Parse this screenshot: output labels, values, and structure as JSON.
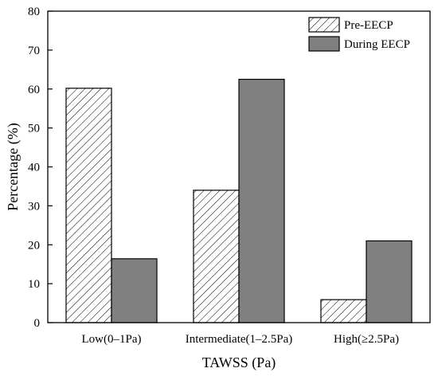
{
  "chart_data": {
    "type": "bar",
    "xlabel": "TAWSS (Pa)",
    "ylabel": "Percentage (%)",
    "categories": [
      "Low(0–1Pa)",
      "Intermediate(1–2.5Pa)",
      "High(≥2.5Pa)"
    ],
    "series": [
      {
        "name": "Pre-EECP",
        "values": [
          60.2,
          34.0,
          5.9
        ],
        "fill": "hatched",
        "color": "#000000"
      },
      {
        "name": "During EECP",
        "values": [
          16.4,
          62.5,
          21.0
        ],
        "fill": "solid",
        "color": "#808080"
      }
    ],
    "ylim": [
      0,
      80
    ],
    "yticks": [
      "0",
      "10",
      "20",
      "30",
      "40",
      "50",
      "60",
      "70",
      "80"
    ],
    "grid": false,
    "legend_position": "top-right"
  }
}
